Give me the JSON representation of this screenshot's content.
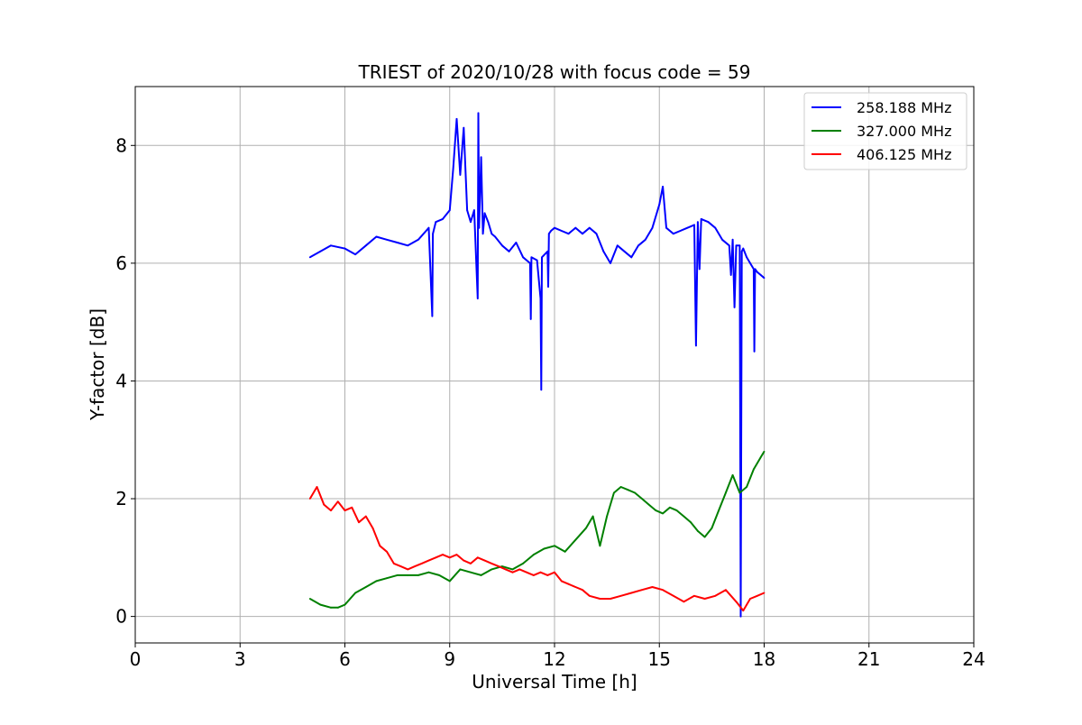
{
  "chart_data": {
    "type": "line",
    "title": "TRIEST of 2020/10/28 with focus code = 59",
    "xlabel": "Universal Time [h]",
    "ylabel": "Y-factor [dB]",
    "xlim": [
      0,
      24
    ],
    "ylim": [
      -0.45,
      9.0
    ],
    "xticks": [
      0,
      3,
      6,
      9,
      12,
      15,
      18,
      21,
      24
    ],
    "yticks": [
      0,
      2,
      4,
      6,
      8
    ],
    "grid": true,
    "legend_position": "top-right",
    "series": [
      {
        "name": "258.188 MHz",
        "color": "#0000ff",
        "x": [
          5.0,
          5.3,
          5.6,
          6.0,
          6.3,
          6.6,
          6.9,
          7.2,
          7.5,
          7.8,
          8.1,
          8.4,
          8.5,
          8.52,
          8.6,
          8.8,
          9.0,
          9.1,
          9.2,
          9.3,
          9.4,
          9.5,
          9.6,
          9.7,
          9.8,
          9.82,
          9.84,
          9.9,
          9.95,
          10.0,
          10.1,
          10.2,
          10.3,
          10.5,
          10.7,
          10.9,
          11.1,
          11.3,
          11.32,
          11.34,
          11.5,
          11.6,
          11.62,
          11.64,
          11.8,
          11.82,
          11.84,
          11.9,
          12.0,
          12.2,
          12.4,
          12.6,
          12.8,
          13.0,
          13.2,
          13.4,
          13.6,
          13.8,
          14.0,
          14.2,
          14.4,
          14.6,
          14.8,
          15.0,
          15.1,
          15.2,
          15.4,
          15.6,
          15.8,
          16.0,
          16.05,
          16.1,
          16.15,
          16.2,
          16.4,
          16.6,
          16.8,
          17.0,
          17.05,
          17.1,
          17.15,
          17.2,
          17.3,
          17.33,
          17.36,
          17.4,
          17.5,
          17.6,
          17.7,
          17.72,
          17.74,
          17.8,
          17.9,
          18.0
        ],
        "y": [
          6.1,
          6.2,
          6.3,
          6.25,
          6.15,
          6.3,
          6.45,
          6.4,
          6.35,
          6.3,
          6.4,
          6.6,
          5.1,
          6.5,
          6.7,
          6.75,
          6.9,
          7.6,
          8.45,
          7.5,
          8.3,
          6.9,
          6.7,
          6.9,
          5.4,
          8.55,
          6.6,
          7.8,
          6.5,
          6.85,
          6.7,
          6.5,
          6.45,
          6.3,
          6.2,
          6.35,
          6.1,
          6.0,
          5.05,
          6.1,
          6.05,
          5.4,
          3.85,
          6.1,
          6.2,
          5.6,
          6.5,
          6.55,
          6.6,
          6.55,
          6.5,
          6.6,
          6.5,
          6.6,
          6.5,
          6.2,
          6.0,
          6.3,
          6.2,
          6.1,
          6.3,
          6.4,
          6.6,
          7.0,
          7.3,
          6.6,
          6.5,
          6.55,
          6.6,
          6.65,
          4.6,
          6.7,
          5.9,
          6.75,
          6.7,
          6.6,
          6.4,
          6.3,
          5.8,
          6.4,
          5.25,
          6.3,
          6.3,
          0.0,
          6.2,
          6.25,
          6.1,
          6.0,
          5.9,
          4.5,
          5.9,
          5.85,
          5.8,
          5.75
        ]
      },
      {
        "name": "327.000 MHz",
        "color": "#008000",
        "x": [
          5.0,
          5.3,
          5.6,
          5.8,
          6.0,
          6.3,
          6.6,
          6.9,
          7.2,
          7.5,
          7.8,
          8.1,
          8.4,
          8.7,
          9.0,
          9.3,
          9.6,
          9.9,
          10.2,
          10.5,
          10.8,
          11.1,
          11.4,
          11.7,
          12.0,
          12.3,
          12.6,
          12.9,
          13.1,
          13.3,
          13.5,
          13.7,
          13.9,
          14.1,
          14.3,
          14.5,
          14.7,
          14.9,
          15.1,
          15.3,
          15.5,
          15.7,
          15.9,
          16.1,
          16.3,
          16.5,
          16.7,
          16.9,
          17.1,
          17.3,
          17.5,
          17.7,
          17.9,
          18.0
        ],
        "y": [
          0.3,
          0.2,
          0.15,
          0.15,
          0.2,
          0.4,
          0.5,
          0.6,
          0.65,
          0.7,
          0.7,
          0.7,
          0.75,
          0.7,
          0.6,
          0.8,
          0.75,
          0.7,
          0.8,
          0.85,
          0.8,
          0.9,
          1.05,
          1.15,
          1.2,
          1.1,
          1.3,
          1.5,
          1.7,
          1.2,
          1.7,
          2.1,
          2.2,
          2.15,
          2.1,
          2.0,
          1.9,
          1.8,
          1.75,
          1.85,
          1.8,
          1.7,
          1.6,
          1.45,
          1.35,
          1.5,
          1.8,
          2.1,
          2.4,
          2.1,
          2.2,
          2.5,
          2.7,
          2.8
        ]
      },
      {
        "name": "406.125 MHz",
        "color": "#ff0000",
        "x": [
          5.0,
          5.2,
          5.4,
          5.6,
          5.8,
          6.0,
          6.2,
          6.4,
          6.6,
          6.8,
          7.0,
          7.2,
          7.4,
          7.6,
          7.8,
          8.0,
          8.2,
          8.4,
          8.6,
          8.8,
          9.0,
          9.2,
          9.4,
          9.6,
          9.8,
          10.0,
          10.2,
          10.4,
          10.6,
          10.8,
          11.0,
          11.2,
          11.4,
          11.6,
          11.8,
          12.0,
          12.2,
          12.4,
          12.6,
          12.8,
          13.0,
          13.3,
          13.6,
          13.9,
          14.2,
          14.5,
          14.8,
          15.1,
          15.4,
          15.7,
          16.0,
          16.3,
          16.6,
          16.9,
          17.2,
          17.4,
          17.6,
          17.8,
          18.0
        ],
        "y": [
          2.0,
          2.2,
          1.9,
          1.8,
          1.95,
          1.8,
          1.85,
          1.6,
          1.7,
          1.5,
          1.2,
          1.1,
          0.9,
          0.85,
          0.8,
          0.85,
          0.9,
          0.95,
          1.0,
          1.05,
          1.0,
          1.05,
          0.95,
          0.9,
          1.0,
          0.95,
          0.9,
          0.85,
          0.8,
          0.75,
          0.8,
          0.75,
          0.7,
          0.75,
          0.7,
          0.75,
          0.6,
          0.55,
          0.5,
          0.45,
          0.35,
          0.3,
          0.3,
          0.35,
          0.4,
          0.45,
          0.5,
          0.45,
          0.35,
          0.25,
          0.35,
          0.3,
          0.35,
          0.45,
          0.25,
          0.1,
          0.3,
          0.35,
          0.4
        ]
      }
    ]
  }
}
